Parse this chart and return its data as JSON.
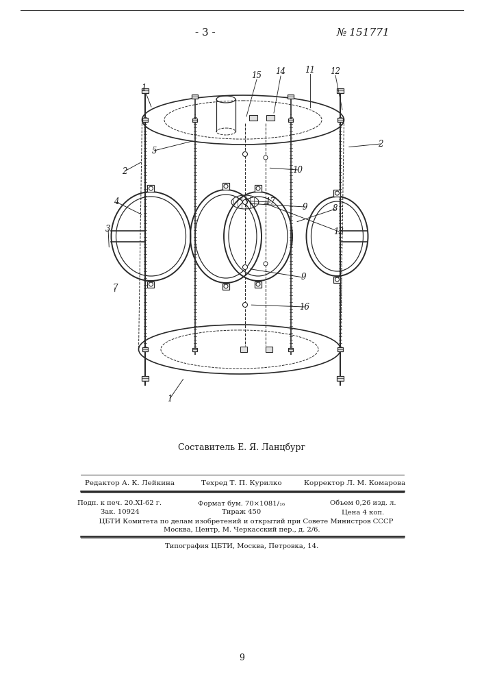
{
  "page_number": "- 3 -",
  "patent_number": "№ 151771",
  "composer": "Составитель Е. Я. Ланцбург",
  "editor_line1": "Редактор А. К. Лейкина",
  "editor_line2": "Техред Т. П. Курилко",
  "editor_line3": "Корректор Л. М. Комарова",
  "info_line1a": "Подп. к печ. 20.ХІ-62 г.",
  "info_line1b": "Формат бум. 70×1081/₁₆",
  "info_line1c": "Объем 0,26 изд. л.",
  "info_line2a": "Зак. 10924",
  "info_line2b": "Тираж 450",
  "info_line2c": "Цена 4 коп.",
  "info_line3": "    ЦБТИ Комитета по делам изобретений и открытий при Совете Министров СССР",
  "info_line4": "Москва, Центр, М. Черкасский пер., д. 2/6.",
  "info_line5": "Типография ЦБТИ, Москва, Петровка, 14.",
  "page_footer": "9",
  "bg_color": "#ffffff",
  "line_color": "#2a2a2a",
  "text_color": "#1a1a1a"
}
